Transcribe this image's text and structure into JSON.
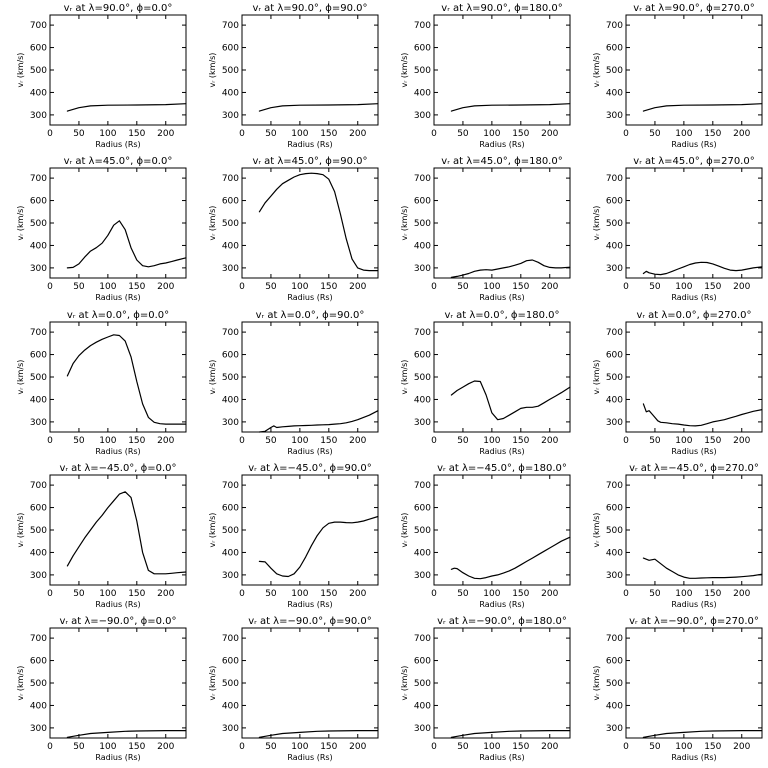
{
  "figure": {
    "xlabel": "Radius (Rs)",
    "ylabel": "vᵣ (km/s)",
    "xticks": [
      0,
      50,
      100,
      150,
      200
    ],
    "yticks": [
      300,
      400,
      500,
      600,
      700
    ],
    "xlim": [
      0,
      235
    ],
    "ylim": [
      255,
      745
    ],
    "grid": false
  },
  "chart_data": [
    {
      "type": "line",
      "title": "vᵣ at λ=90.0°, ϕ=0.0°",
      "xlabel": "Radius (Rs)",
      "ylabel": "vᵣ (km/s)",
      "xlim": [
        0,
        235
      ],
      "ylim": [
        255,
        745
      ],
      "series": [
        {
          "x": [
            30,
            50,
            70,
            100,
            150,
            200,
            235
          ],
          "y": [
            317,
            332,
            340,
            343,
            344,
            346,
            350
          ]
        }
      ]
    },
    {
      "type": "line",
      "title": "vᵣ at λ=90.0°, ϕ=90.0°",
      "xlabel": "Radius (Rs)",
      "ylabel": "vᵣ (km/s)",
      "xlim": [
        0,
        235
      ],
      "ylim": [
        255,
        745
      ],
      "series": [
        {
          "x": [
            30,
            50,
            70,
            100,
            150,
            200,
            235
          ],
          "y": [
            317,
            332,
            340,
            343,
            344,
            346,
            350
          ]
        }
      ]
    },
    {
      "type": "line",
      "title": "vᵣ at λ=90.0°, ϕ=180.0°",
      "xlabel": "Radius (Rs)",
      "ylabel": "vᵣ (km/s)",
      "xlim": [
        0,
        235
      ],
      "ylim": [
        255,
        745
      ],
      "series": [
        {
          "x": [
            30,
            50,
            70,
            100,
            150,
            200,
            235
          ],
          "y": [
            317,
            332,
            340,
            343,
            344,
            346,
            350
          ]
        }
      ]
    },
    {
      "type": "line",
      "title": "vᵣ at λ=90.0°, ϕ=270.0°",
      "xlabel": "Radius (Rs)",
      "ylabel": "vᵣ (km/s)",
      "xlim": [
        0,
        235
      ],
      "ylim": [
        255,
        745
      ],
      "series": [
        {
          "x": [
            30,
            50,
            70,
            100,
            150,
            200,
            235
          ],
          "y": [
            317,
            332,
            340,
            343,
            344,
            346,
            350
          ]
        }
      ]
    },
    {
      "type": "line",
      "title": "vᵣ at λ=45.0°, ϕ=0.0°",
      "xlabel": "Radius (Rs)",
      "ylabel": "vᵣ (km/s)",
      "xlim": [
        0,
        235
      ],
      "ylim": [
        255,
        745
      ],
      "series": [
        {
          "x": [
            30,
            40,
            50,
            60,
            70,
            80,
            90,
            100,
            110,
            120,
            130,
            140,
            150,
            160,
            170,
            180,
            190,
            200,
            210,
            220,
            235
          ],
          "y": [
            300,
            302,
            318,
            348,
            375,
            390,
            410,
            445,
            490,
            510,
            470,
            390,
            335,
            310,
            305,
            310,
            318,
            322,
            328,
            335,
            345
          ]
        }
      ]
    },
    {
      "type": "line",
      "title": "vᵣ at λ=45.0°, ϕ=90.0°",
      "xlabel": "Radius (Rs)",
      "ylabel": "vᵣ (km/s)",
      "xlim": [
        0,
        235
      ],
      "ylim": [
        255,
        745
      ],
      "series": [
        {
          "x": [
            30,
            40,
            50,
            60,
            70,
            80,
            90,
            100,
            110,
            120,
            130,
            140,
            150,
            160,
            170,
            180,
            190,
            200,
            210,
            220,
            235
          ],
          "y": [
            550,
            590,
            620,
            650,
            675,
            690,
            705,
            715,
            720,
            722,
            720,
            715,
            695,
            640,
            540,
            430,
            340,
            300,
            290,
            288,
            288
          ]
        }
      ]
    },
    {
      "type": "line",
      "title": "vᵣ at λ=45.0°, ϕ=180.0°",
      "xlabel": "Radius (Rs)",
      "ylabel": "vᵣ (km/s)",
      "xlim": [
        0,
        235
      ],
      "ylim": [
        255,
        745
      ],
      "series": [
        {
          "x": [
            30,
            40,
            50,
            60,
            70,
            80,
            90,
            100,
            110,
            120,
            130,
            140,
            150,
            160,
            170,
            180,
            190,
            200,
            210,
            220,
            235
          ],
          "y": [
            258,
            262,
            268,
            275,
            285,
            290,
            292,
            290,
            295,
            300,
            305,
            312,
            320,
            332,
            335,
            325,
            310,
            302,
            300,
            300,
            303
          ]
        }
      ]
    },
    {
      "type": "line",
      "title": "vᵣ at λ=45.0°, ϕ=270.0°",
      "xlabel": "Radius (Rs)",
      "ylabel": "vᵣ (km/s)",
      "xlim": [
        0,
        235
      ],
      "ylim": [
        255,
        745
      ],
      "series": [
        {
          "x": [
            30,
            35,
            40,
            50,
            60,
            70,
            80,
            90,
            100,
            110,
            120,
            130,
            140,
            150,
            160,
            170,
            180,
            190,
            200,
            210,
            220,
            235
          ],
          "y": [
            275,
            285,
            278,
            272,
            270,
            275,
            285,
            295,
            305,
            315,
            322,
            325,
            324,
            318,
            308,
            298,
            290,
            288,
            290,
            295,
            300,
            305
          ]
        }
      ]
    },
    {
      "type": "line",
      "title": "vᵣ at λ=0.0°, ϕ=0.0°",
      "xlabel": "Radius (Rs)",
      "ylabel": "vᵣ (km/s)",
      "xlim": [
        0,
        235
      ],
      "ylim": [
        255,
        745
      ],
      "series": [
        {
          "x": [
            30,
            40,
            50,
            60,
            70,
            80,
            90,
            100,
            110,
            120,
            130,
            140,
            150,
            160,
            170,
            180,
            190,
            200,
            210,
            220,
            235
          ],
          "y": [
            505,
            560,
            595,
            620,
            640,
            655,
            668,
            678,
            688,
            685,
            660,
            590,
            480,
            380,
            320,
            298,
            292,
            290,
            290,
            290,
            290
          ]
        }
      ]
    },
    {
      "type": "line",
      "title": "vᵣ at λ=0.0°, ϕ=90.0°",
      "xlabel": "Radius (Rs)",
      "ylabel": "vᵣ (km/s)",
      "xlim": [
        0,
        235
      ],
      "ylim": [
        255,
        745
      ],
      "series": [
        {
          "x": [
            30,
            40,
            50,
            55,
            60,
            70,
            80,
            90,
            100,
            110,
            120,
            130,
            140,
            150,
            160,
            170,
            180,
            190,
            200,
            210,
            220,
            235
          ],
          "y": [
            255,
            258,
            275,
            282,
            275,
            278,
            280,
            282,
            283,
            284,
            285,
            286,
            287,
            288,
            290,
            292,
            296,
            302,
            310,
            320,
            330,
            350
          ]
        }
      ]
    },
    {
      "type": "line",
      "title": "vᵣ at λ=0.0°, ϕ=180.0°",
      "xlabel": "Radius (Rs)",
      "ylabel": "vᵣ (km/s)",
      "xlim": [
        0,
        235
      ],
      "ylim": [
        255,
        745
      ],
      "series": [
        {
          "x": [
            30,
            40,
            50,
            60,
            70,
            80,
            90,
            100,
            110,
            120,
            130,
            140,
            150,
            160,
            170,
            180,
            190,
            200,
            210,
            220,
            235
          ],
          "y": [
            420,
            440,
            455,
            470,
            482,
            480,
            420,
            340,
            310,
            315,
            330,
            345,
            360,
            365,
            365,
            370,
            385,
            400,
            415,
            430,
            455
          ]
        }
      ]
    },
    {
      "type": "line",
      "title": "vᵣ at λ=0.0°, ϕ=270.0°",
      "xlabel": "Radius (Rs)",
      "ylabel": "vᵣ (km/s)",
      "xlim": [
        0,
        235
      ],
      "ylim": [
        255,
        745
      ],
      "series": [
        {
          "x": [
            30,
            35,
            40,
            45,
            50,
            55,
            60,
            70,
            80,
            90,
            100,
            110,
            120,
            130,
            140,
            150,
            160,
            170,
            180,
            190,
            200,
            210,
            220,
            235
          ],
          "y": [
            380,
            345,
            350,
            335,
            320,
            305,
            298,
            296,
            292,
            290,
            286,
            283,
            282,
            285,
            292,
            300,
            305,
            310,
            318,
            325,
            333,
            340,
            347,
            355
          ]
        }
      ]
    },
    {
      "type": "line",
      "title": "vᵣ at λ=−45.0°, ϕ=0.0°",
      "xlabel": "Radius (Rs)",
      "ylabel": "vᵣ (km/s)",
      "xlim": [
        0,
        235
      ],
      "ylim": [
        255,
        745
      ],
      "series": [
        {
          "x": [
            30,
            40,
            50,
            60,
            70,
            80,
            90,
            100,
            110,
            120,
            130,
            140,
            150,
            160,
            170,
            180,
            190,
            200,
            210,
            220,
            235
          ],
          "y": [
            340,
            385,
            425,
            465,
            500,
            535,
            565,
            600,
            630,
            660,
            670,
            645,
            540,
            400,
            320,
            305,
            305,
            305,
            307,
            310,
            313
          ]
        }
      ]
    },
    {
      "type": "line",
      "title": "vᵣ at λ=−45.0°, ϕ=90.0°",
      "xlabel": "Radius (Rs)",
      "ylabel": "vᵣ (km/s)",
      "xlim": [
        0,
        235
      ],
      "ylim": [
        255,
        745
      ],
      "series": [
        {
          "x": [
            30,
            40,
            50,
            60,
            70,
            80,
            90,
            100,
            110,
            120,
            130,
            140,
            150,
            160,
            170,
            180,
            190,
            200,
            210,
            220,
            235
          ],
          "y": [
            360,
            358,
            330,
            305,
            295,
            293,
            305,
            335,
            380,
            430,
            475,
            510,
            530,
            535,
            535,
            533,
            532,
            535,
            540,
            548,
            560
          ]
        }
      ]
    },
    {
      "type": "line",
      "title": "vᵣ at λ=−45.0°, ϕ=180.0°",
      "xlabel": "Radius (Rs)",
      "ylabel": "vᵣ (km/s)",
      "xlim": [
        0,
        235
      ],
      "ylim": [
        255,
        745
      ],
      "series": [
        {
          "x": [
            30,
            35,
            40,
            50,
            60,
            70,
            80,
            90,
            100,
            110,
            120,
            130,
            140,
            150,
            160,
            170,
            180,
            190,
            200,
            210,
            220,
            235
          ],
          "y": [
            325,
            330,
            328,
            310,
            295,
            285,
            283,
            288,
            295,
            300,
            308,
            318,
            330,
            345,
            360,
            375,
            390,
            405,
            420,
            435,
            450,
            468
          ]
        }
      ]
    },
    {
      "type": "line",
      "title": "vᵣ at λ=−45.0°, ϕ=270.0°",
      "xlabel": "Radius (Rs)",
      "ylabel": "vᵣ (km/s)",
      "xlim": [
        0,
        235
      ],
      "ylim": [
        255,
        745
      ],
      "series": [
        {
          "x": [
            30,
            40,
            50,
            60,
            70,
            80,
            90,
            100,
            110,
            120,
            130,
            140,
            150,
            160,
            170,
            180,
            190,
            200,
            210,
            220,
            235
          ],
          "y": [
            375,
            365,
            370,
            350,
            330,
            315,
            300,
            290,
            285,
            285,
            286,
            287,
            288,
            288,
            288,
            289,
            290,
            292,
            294,
            297,
            303
          ]
        }
      ]
    },
    {
      "type": "line",
      "title": "vᵣ at λ=−90.0°, ϕ=0.0°",
      "xlabel": "Radius (Rs)",
      "ylabel": "vᵣ (km/s)",
      "xlim": [
        0,
        235
      ],
      "ylim": [
        255,
        745
      ],
      "series": [
        {
          "x": [
            30,
            50,
            70,
            100,
            130,
            150,
            200,
            235
          ],
          "y": [
            258,
            267,
            275,
            280,
            285,
            286,
            288,
            288
          ]
        }
      ]
    },
    {
      "type": "line",
      "title": "vᵣ at λ=−90.0°, ϕ=90.0°",
      "xlabel": "Radius (Rs)",
      "ylabel": "vᵣ (km/s)",
      "xlim": [
        0,
        235
      ],
      "ylim": [
        255,
        745
      ],
      "series": [
        {
          "x": [
            30,
            50,
            70,
            100,
            130,
            150,
            200,
            235
          ],
          "y": [
            258,
            267,
            275,
            280,
            285,
            286,
            288,
            288
          ]
        }
      ]
    },
    {
      "type": "line",
      "title": "vᵣ at λ=−90.0°, ϕ=180.0°",
      "xlabel": "Radius (Rs)",
      "ylabel": "vᵣ (km/s)",
      "xlim": [
        0,
        235
      ],
      "ylim": [
        255,
        745
      ],
      "series": [
        {
          "x": [
            30,
            50,
            70,
            100,
            130,
            150,
            200,
            235
          ],
          "y": [
            258,
            267,
            275,
            280,
            285,
            286,
            288,
            288
          ]
        }
      ]
    },
    {
      "type": "line",
      "title": "vᵣ at λ=−90.0°, ϕ=270.0°",
      "xlabel": "Radius (Rs)",
      "ylabel": "vᵣ (km/s)",
      "xlim": [
        0,
        235
      ],
      "ylim": [
        255,
        745
      ],
      "series": [
        {
          "x": [
            30,
            50,
            70,
            100,
            130,
            150,
            200,
            235
          ],
          "y": [
            258,
            267,
            275,
            280,
            285,
            286,
            288,
            288
          ]
        }
      ]
    }
  ]
}
